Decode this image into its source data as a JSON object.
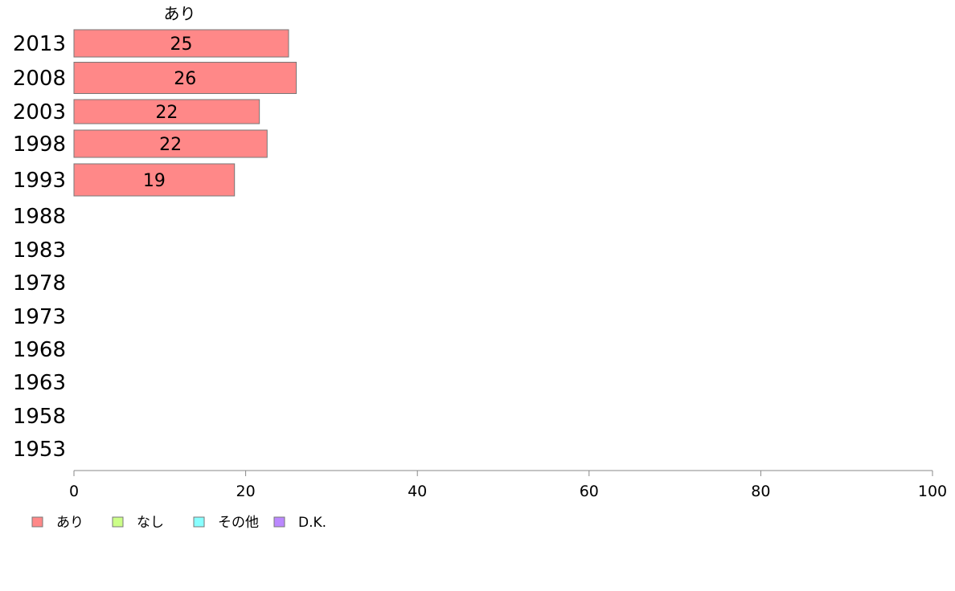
{
  "chart_data": {
    "type": "bar",
    "orientation": "horizontal",
    "stacked": true,
    "categories": [
      "2013",
      "2008",
      "2003",
      "1998",
      "1993",
      "1988",
      "1983",
      "1978",
      "1973",
      "1968",
      "1963",
      "1958",
      "1953"
    ],
    "series": [
      {
        "name": "あり",
        "values": [
          25.0,
          25.9,
          21.6,
          22.5,
          18.7,
          null,
          null,
          null,
          null,
          null,
          null,
          null,
          null
        ],
        "labels": [
          "25",
          "26",
          "22",
          "22",
          "19",
          "",
          "",
          "",
          "",
          "",
          "",
          "",
          ""
        ]
      },
      {
        "name": "なし",
        "values": [
          null,
          null,
          null,
          null,
          null,
          null,
          null,
          null,
          null,
          null,
          null,
          null,
          null
        ]
      },
      {
        "name": "その他",
        "values": [
          null,
          null,
          null,
          null,
          null,
          null,
          null,
          null,
          null,
          null,
          null,
          null,
          null
        ]
      },
      {
        "name": "D.K.",
        "values": [
          null,
          null,
          null,
          null,
          null,
          null,
          null,
          null,
          null,
          null,
          null,
          null,
          null
        ]
      }
    ],
    "top_label": "あり",
    "xlim": [
      0,
      100
    ],
    "xticks": [
      0,
      20,
      40,
      60,
      80,
      100
    ],
    "grid": false,
    "legend_position": "bottom-left",
    "title": "",
    "xlabel": "",
    "ylabel": ""
  },
  "colors": {
    "あり": "#ff8888",
    "なし": "#ccff88",
    "その他": "#88ffff",
    "D.K.": "#bb88ff",
    "bar_stroke": "#777777",
    "axis": "#888888",
    "text": "#000000"
  }
}
